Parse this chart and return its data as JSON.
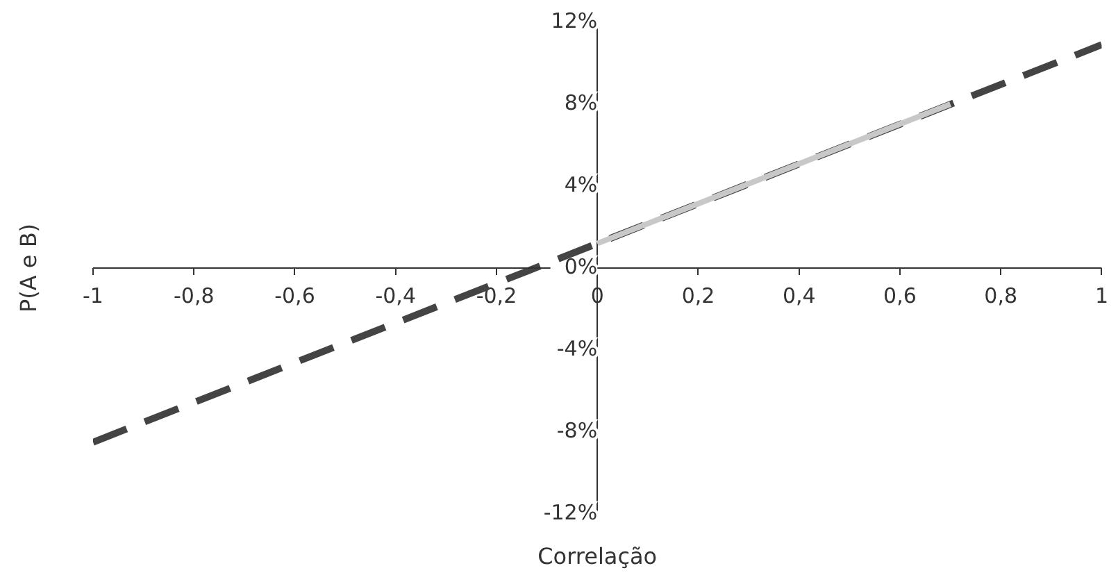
{
  "chart_data": {
    "type": "line",
    "xlabel": "Correlação",
    "ylabel": "P(A e B)",
    "xlim": [
      -1,
      1
    ],
    "xticks": [
      {
        "value": -1,
        "label": "-1"
      },
      {
        "value": -0.8,
        "label": "-0,8"
      },
      {
        "value": -0.6,
        "label": "-0,6"
      },
      {
        "value": -0.4,
        "label": "-0,4"
      },
      {
        "value": -0.2,
        "label": "-0,2"
      },
      {
        "value": 0,
        "label": "0"
      },
      {
        "value": 0.2,
        "label": "0,2"
      },
      {
        "value": 0.4,
        "label": "0,4"
      },
      {
        "value": 0.6,
        "label": "0,6"
      },
      {
        "value": 0.8,
        "label": "0,8"
      },
      {
        "value": 1,
        "label": "1"
      }
    ],
    "ylim": [
      -12,
      12
    ],
    "yticks": [
      {
        "value": -12,
        "label": "-12%"
      },
      {
        "value": -8,
        "label": "-8%"
      },
      {
        "value": -4,
        "label": "-4%"
      },
      {
        "value": 0,
        "label": "0%"
      },
      {
        "value": 4,
        "label": "4%"
      },
      {
        "value": 8,
        "label": "8%"
      },
      {
        "value": 12,
        "label": "12%"
      }
    ],
    "series": [
      {
        "color": "#444444",
        "x": [
          -1,
          1
        ],
        "values": [
          -8.5,
          10.9
        ],
        "line_style": "dashed"
      },
      {
        "color": "#c8c8c8",
        "x": [
          0,
          0.7
        ],
        "values": [
          1.2,
          8.0
        ],
        "line_style": "solid"
      }
    ],
    "grid": false,
    "legend": false,
    "marker": "none"
  }
}
